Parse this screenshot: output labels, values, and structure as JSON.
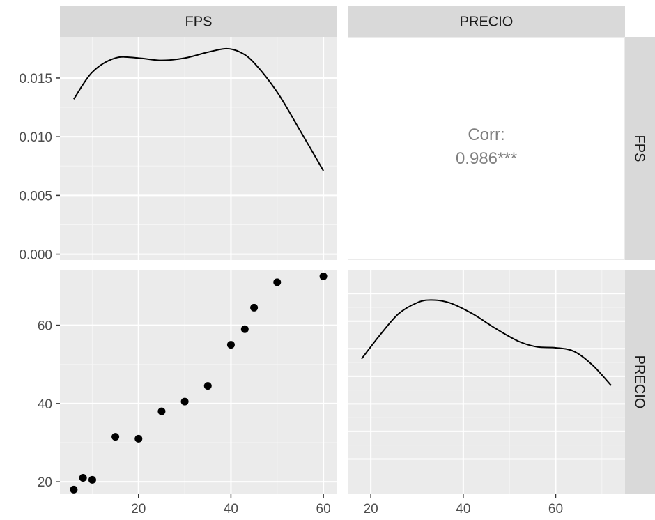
{
  "colors": {
    "panel_bg": "#ebebeb",
    "strip_bg": "#d9d9d9",
    "grid_major": "#ffffff",
    "grid_minor": "#f5f5f5",
    "ink": "#000000",
    "corr_text": "#7f7f7f",
    "tick_text": "#4d4d4d"
  },
  "chart_data": {
    "type": "scatter-matrix",
    "variables": [
      "FPS",
      "PRECIO"
    ],
    "column_strips": [
      "FPS",
      "PRECIO"
    ],
    "row_strips": [
      "FPS",
      "PRECIO"
    ],
    "x_axes": {
      "FPS": {
        "range": [
          3,
          63
        ],
        "ticks": [
          20,
          40,
          60
        ],
        "tick_labels": [
          "20",
          "40",
          "60"
        ]
      },
      "PRECIO": {
        "range": [
          15,
          75
        ],
        "ticks": [
          20,
          40,
          60
        ],
        "tick_labels": [
          "20",
          "40",
          "60"
        ]
      }
    },
    "y_axes": {
      "density": {
        "range": [
          -0.0005,
          0.0185
        ],
        "ticks": [
          0,
          0.005,
          0.01,
          0.015
        ],
        "tick_labels": [
          "0.000",
          "0.005",
          "0.010",
          "0.015"
        ]
      },
      "PRECIO": {
        "range": [
          17,
          74
        ],
        "ticks": [
          20,
          40,
          60
        ],
        "tick_labels": [
          "20",
          "40",
          "60"
        ]
      }
    },
    "panels": [
      {
        "id": "fps-density",
        "type": "line",
        "row": 0,
        "col": 0,
        "points": [
          [
            6,
            0.0132
          ],
          [
            10,
            0.0155
          ],
          [
            15,
            0.0167
          ],
          [
            20,
            0.0167
          ],
          [
            25,
            0.0165
          ],
          [
            30,
            0.0167
          ],
          [
            35,
            0.0172
          ],
          [
            39,
            0.0175
          ],
          [
            42,
            0.0172
          ],
          [
            45,
            0.0163
          ],
          [
            50,
            0.0138
          ],
          [
            55,
            0.0105
          ],
          [
            60,
            0.0071
          ]
        ]
      },
      {
        "id": "correlation",
        "type": "text",
        "row": 0,
        "col": 1,
        "label": "Corr:",
        "value": "0.986***"
      },
      {
        "id": "scatter",
        "type": "scatter",
        "row": 1,
        "col": 0,
        "points": [
          [
            6,
            18
          ],
          [
            8,
            21
          ],
          [
            10,
            20.5
          ],
          [
            15,
            31.5
          ],
          [
            20,
            31
          ],
          [
            25,
            38
          ],
          [
            30,
            40.5
          ],
          [
            35,
            44.5
          ],
          [
            40,
            55
          ],
          [
            43,
            59
          ],
          [
            45,
            64.5
          ],
          [
            50,
            71
          ],
          [
            60,
            72.5
          ]
        ]
      },
      {
        "id": "precio-density",
        "type": "line",
        "row": 1,
        "col": 1,
        "y_range": [
          0,
          0.022
        ],
        "points": [
          [
            18,
            0.0139
          ],
          [
            22,
            0.0165
          ],
          [
            26,
            0.0188
          ],
          [
            30,
            0.02
          ],
          [
            33,
            0.0203
          ],
          [
            37,
            0.02
          ],
          [
            42,
            0.0188
          ],
          [
            47,
            0.0172
          ],
          [
            52,
            0.0158
          ],
          [
            56,
            0.0152
          ],
          [
            60,
            0.0151
          ],
          [
            64,
            0.0147
          ],
          [
            68,
            0.0132
          ],
          [
            72,
            0.011
          ]
        ]
      }
    ]
  }
}
